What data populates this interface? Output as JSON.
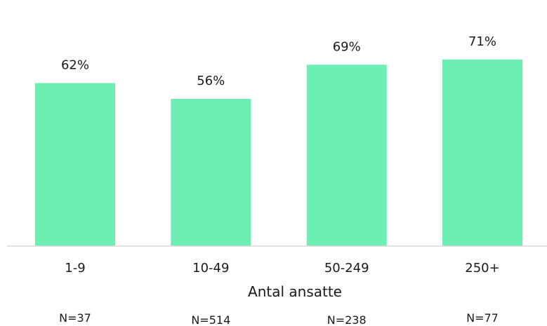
{
  "chart_data": {
    "type": "bar",
    "categories": [
      "1-9",
      "10-49",
      "50-249",
      "250+"
    ],
    "values": [
      62,
      56,
      69,
      71
    ],
    "value_labels": [
      "62%",
      "56%",
      "69%",
      "71%"
    ],
    "sample_sizes": [
      "N=37",
      "N=514",
      "N=238",
      "N=77"
    ],
    "title": "",
    "xlabel": "Antal ansatte",
    "ylabel": "",
    "ylim": [
      0,
      80
    ],
    "grid": false,
    "legend": "none",
    "bar_color": "#6deeb3",
    "axis_color": "#d9d9d9",
    "text_color": "#1a1a1a"
  }
}
